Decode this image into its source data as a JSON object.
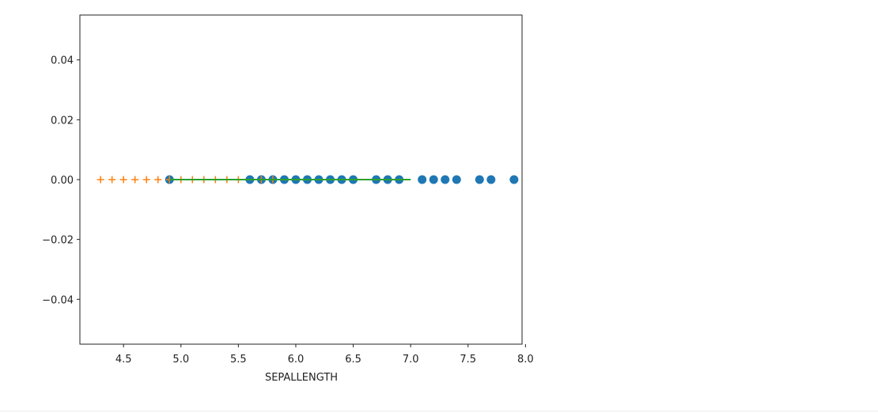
{
  "chart_data": {
    "type": "scatter",
    "title": "",
    "xlabel": "SEPALLENGTH",
    "ylabel": "",
    "xlim": [
      4.12,
      7.97
    ],
    "ylim": [
      -0.055,
      0.055
    ],
    "xticks": [
      4.5,
      5.0,
      5.5,
      6.0,
      6.5,
      7.0,
      7.5,
      8.0
    ],
    "xtick_labels": [
      "4.5",
      "5.0",
      "5.5",
      "6.0",
      "6.5",
      "7.0",
      "7.5",
      "8.0"
    ],
    "yticks": [
      0.04,
      0.02,
      0.0,
      -0.02,
      -0.04
    ],
    "ytick_labels": [
      "0.04",
      "0.02",
      "0.00",
      "−0.02",
      "−0.04"
    ],
    "grid": false,
    "series": [
      {
        "marker": "circle",
        "color": "#1f77b4",
        "x": [
          4.9,
          5.6,
          5.7,
          5.8,
          5.9,
          6.0,
          6.1,
          6.2,
          6.3,
          6.4,
          6.5,
          6.7,
          6.8,
          6.9,
          7.1,
          7.2,
          7.3,
          7.4,
          7.6,
          7.7,
          7.9
        ],
        "y": [
          0,
          0,
          0,
          0,
          0,
          0,
          0,
          0,
          0,
          0,
          0,
          0,
          0,
          0,
          0,
          0,
          0,
          0,
          0,
          0,
          0
        ]
      },
      {
        "marker": "plus",
        "color": "#ff7f0e",
        "x": [
          4.3,
          4.4,
          4.5,
          4.6,
          4.7,
          4.8,
          4.9,
          5.0,
          5.1,
          5.2,
          5.3,
          5.4,
          5.5,
          5.7,
          5.8
        ],
        "y": [
          0,
          0,
          0,
          0,
          0,
          0,
          0,
          0,
          0,
          0,
          0,
          0,
          0,
          0,
          0
        ]
      },
      {
        "marker": "line",
        "color": "#2ca02c",
        "x": [
          4.9,
          7.0
        ],
        "y": [
          0,
          0
        ]
      }
    ]
  }
}
